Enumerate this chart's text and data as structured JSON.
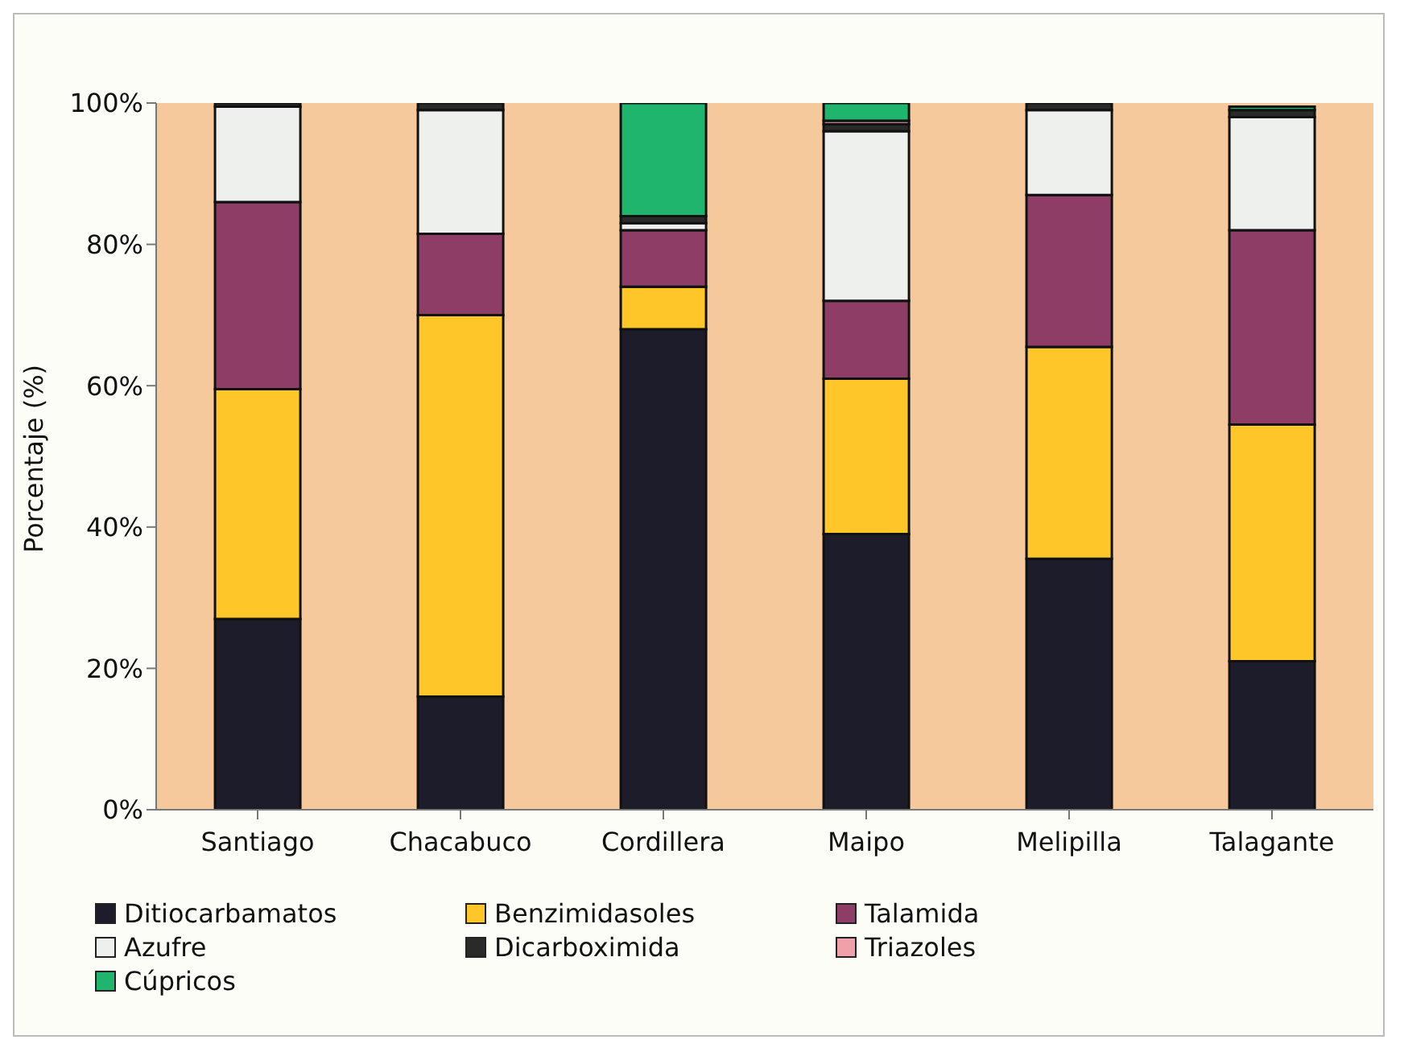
{
  "chart_data": {
    "type": "bar",
    "stacked": true,
    "ylabel": "Porcentaje (%)",
    "categories": [
      "Santiago",
      "Chacabuco",
      "Cordillera",
      "Maipo",
      "Melipilla",
      "Talagante"
    ],
    "series": [
      {
        "name": "Ditiocarbamatos",
        "color": "#1c1c2a",
        "values": [
          27,
          16,
          68,
          39,
          35.5,
          21
        ]
      },
      {
        "name": "Benzimidasoles",
        "color": "#ffc629",
        "values": [
          32.5,
          54,
          6,
          22,
          30,
          33.5
        ]
      },
      {
        "name": "Talamida",
        "color": "#8e3d66",
        "values": [
          26.5,
          11.5,
          8,
          11,
          21.5,
          27.5
        ]
      },
      {
        "name": "Azufre",
        "color": "#eef0ee",
        "values": [
          13.5,
          17.5,
          1,
          24,
          12,
          16
        ]
      },
      {
        "name": "Dicarboximida",
        "color": "#2a2a2a",
        "values": [
          0.5,
          1,
          1,
          1,
          1,
          1
        ]
      },
      {
        "name": "Triazoles",
        "color": "#f0a0a8",
        "values": [
          0,
          0,
          0,
          0.5,
          0,
          0
        ]
      },
      {
        "name": "Cúpricos",
        "color": "#1fb56c",
        "values": [
          0,
          0,
          16,
          2.5,
          0,
          0.5
        ]
      }
    ],
    "ylim": [
      0,
      100
    ],
    "yticks": [
      {
        "value": 0,
        "label": "0%"
      },
      {
        "value": 20,
        "label": "20%"
      },
      {
        "value": 40,
        "label": "40%"
      },
      {
        "value": 60,
        "label": "60%"
      },
      {
        "value": 80,
        "label": "80%"
      },
      {
        "value": 100,
        "label": "100%"
      }
    ],
    "grid": false,
    "legend": "bottom"
  }
}
